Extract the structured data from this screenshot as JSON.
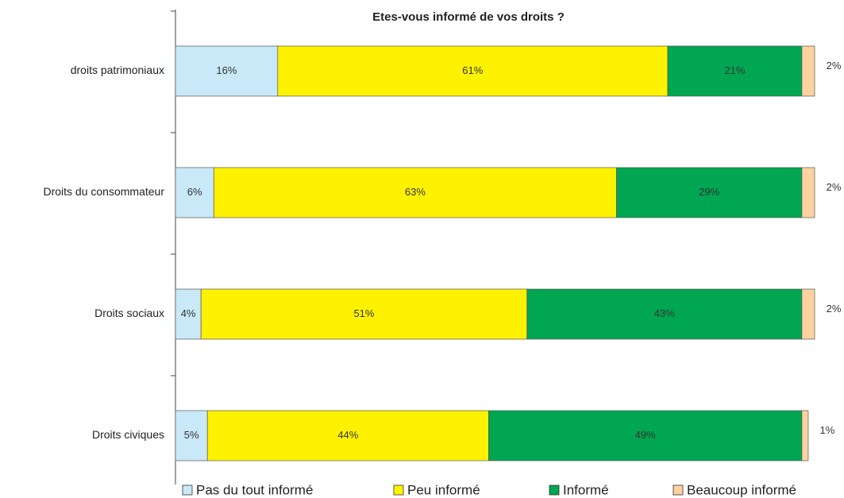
{
  "chart_data": {
    "type": "stacked-bar-horizontal",
    "title": "Etes-vous informé de vos droits ?",
    "categories": [
      "droits patrimoniaux",
      "Droits du consommateur",
      "Droits sociaux",
      "Droits civiques"
    ],
    "xlim": [
      0,
      100
    ],
    "series": [
      {
        "name": "Pas du tout informé",
        "color": "#c9e8f8",
        "values": [
          16,
          6,
          4,
          5
        ],
        "value_labels": [
          "16%",
          "6%",
          "4%",
          "5%"
        ]
      },
      {
        "name": "Peu informé",
        "color": "#fff200",
        "values": [
          61,
          63,
          51,
          44
        ],
        "value_labels": [
          "61%",
          "63%",
          "51%",
          "44%"
        ]
      },
      {
        "name": "Informé",
        "color": "#00a651",
        "values": [
          21,
          29,
          43,
          49
        ],
        "value_labels": [
          "21%",
          "29%",
          "43%",
          "49%"
        ]
      },
      {
        "name": "Beaucoup informé",
        "color": "#fcd3a0",
        "values": [
          2,
          2,
          2,
          1
        ],
        "value_labels": [
          "2%",
          "2%",
          "2%",
          "1%"
        ]
      }
    ]
  }
}
